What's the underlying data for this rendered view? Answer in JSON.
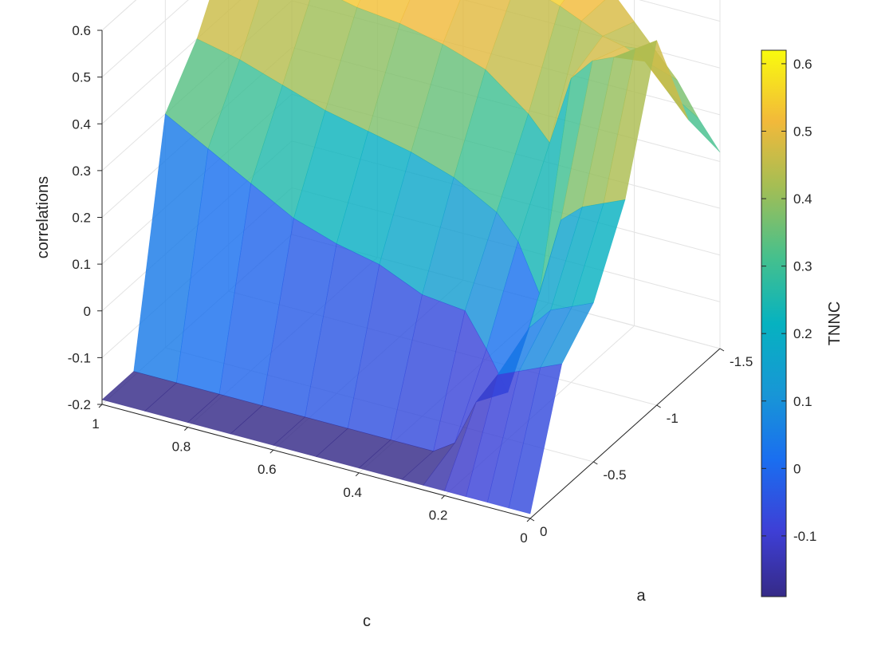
{
  "chart_data": {
    "type": "surface3d",
    "title": "",
    "xlabel": "c",
    "ylabel": "a",
    "zlabel": "correlations",
    "colorbar_label": "TNNC",
    "colormap": "parula",
    "grid": true,
    "xlim": [
      0,
      1
    ],
    "ylim": [
      -1.5,
      0
    ],
    "zlim": [
      -0.2,
      0.6
    ],
    "clim": [
      -0.19,
      0.62
    ],
    "x_ticks": [
      {
        "value": 1,
        "label": "1"
      },
      {
        "value": 0.8,
        "label": "0.8"
      },
      {
        "value": 0.6,
        "label": "0.6"
      },
      {
        "value": 0.4,
        "label": "0.4"
      },
      {
        "value": 0.2,
        "label": "0.2"
      },
      {
        "value": 0,
        "label": "0"
      }
    ],
    "y_ticks": [
      {
        "value": 0,
        "label": "0"
      },
      {
        "value": -0.5,
        "label": "-0.5"
      },
      {
        "value": -1,
        "label": "-1"
      },
      {
        "value": -1.5,
        "label": "-1.5"
      }
    ],
    "z_ticks": [
      {
        "value": 0.6,
        "label": "0.6"
      },
      {
        "value": 0.5,
        "label": "0.5"
      },
      {
        "value": 0.4,
        "label": "0.4"
      },
      {
        "value": 0.3,
        "label": "0.3"
      },
      {
        "value": 0.2,
        "label": "0.2"
      },
      {
        "value": 0.1,
        "label": "0.1"
      },
      {
        "value": 0,
        "label": "0"
      },
      {
        "value": -0.1,
        "label": "-0.1"
      },
      {
        "value": -0.2,
        "label": "-0.2"
      }
    ],
    "colorbar_ticks": [
      {
        "value": 0.6,
        "label": "0.6"
      },
      {
        "value": 0.5,
        "label": "0.5"
      },
      {
        "value": 0.4,
        "label": "0.4"
      },
      {
        "value": 0.3,
        "label": "0.3"
      },
      {
        "value": 0.2,
        "label": "0.2"
      },
      {
        "value": 0.1,
        "label": "0.1"
      },
      {
        "value": 0,
        "label": "0"
      },
      {
        "value": -0.1,
        "label": "-0.1"
      }
    ],
    "surface_grid": {
      "c": [
        1.0,
        0.9,
        0.8,
        0.7,
        0.6,
        0.5,
        0.4,
        0.3,
        0.25,
        0.2,
        0.15,
        0.1,
        0.05,
        0.0
      ],
      "a": [
        0.0,
        -0.25,
        -0.5,
        -0.75,
        -1.0,
        -1.25,
        -1.5
      ],
      "z": [
        [
          -0.19,
          -0.19,
          -0.19,
          -0.19,
          -0.19,
          -0.19,
          -0.19,
          -0.19,
          -0.19,
          -0.19,
          -0.19,
          -0.19,
          -0.19,
          -0.19
        ],
        [
          -0.19,
          -0.19,
          -0.19,
          -0.19,
          -0.19,
          -0.19,
          -0.19,
          -0.19,
          -0.16,
          -0.06,
          0.01,
          0.03,
          0.05,
          0.07
        ],
        [
          0.3,
          0.25,
          0.2,
          0.15,
          0.12,
          0.1,
          0.06,
          0.05,
          -0.02,
          -0.1,
          0.05,
          0.1,
          0.12,
          0.14
        ],
        [
          0.4,
          0.38,
          0.35,
          0.32,
          0.3,
          0.28,
          0.25,
          0.2,
          0.15,
          0.05,
          0.22,
          0.26,
          0.28,
          0.3
        ],
        [
          0.55,
          0.53,
          0.5,
          0.48,
          0.47,
          0.45,
          0.42,
          0.35,
          0.3,
          0.45,
          0.5,
          0.52,
          0.55,
          0.58
        ],
        [
          0.62,
          0.6,
          0.59,
          0.58,
          0.57,
          0.56,
          0.55,
          0.52,
          0.5,
          0.48,
          0.47,
          0.45,
          0.4,
          0.35
        ],
        [
          0.62,
          0.61,
          0.6,
          0.6,
          0.59,
          0.58,
          0.57,
          0.55,
          0.5,
          0.45,
          0.4,
          0.35,
          0.28,
          0.22
        ]
      ]
    }
  }
}
